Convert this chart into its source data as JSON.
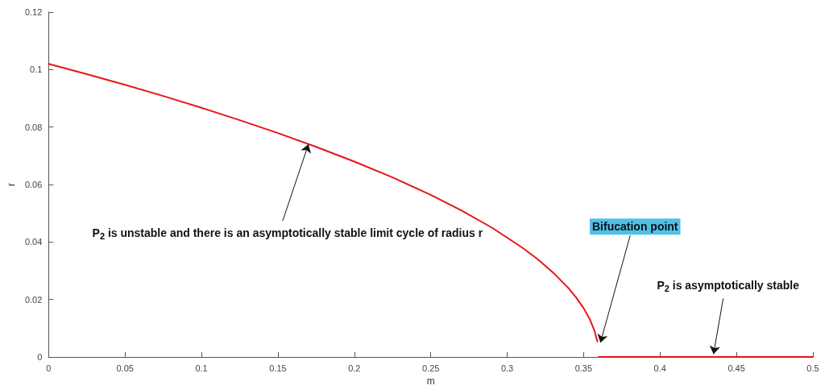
{
  "chart_data": {
    "type": "line",
    "xlabel": "m",
    "ylabel": "r",
    "xlim": [
      0,
      0.5
    ],
    "xticks": [
      0,
      0.05,
      0.1,
      0.15,
      0.2,
      0.25,
      0.3,
      0.35,
      0.4,
      0.45,
      0.5
    ],
    "ylim": [
      0,
      0.12
    ],
    "yticks": [
      0,
      0.02,
      0.04,
      0.06,
      0.08,
      0.1,
      0.12
    ],
    "grid": false,
    "marker": "none",
    "line_style": "solid",
    "series": [
      {
        "color": "#e8141a",
        "x": [
          0,
          0.025,
          0.05,
          0.075,
          0.1,
          0.125,
          0.15,
          0.175,
          0.2,
          0.225,
          0.25,
          0.27,
          0.29,
          0.31,
          0.32,
          0.33,
          0.34,
          0.345,
          0.35,
          0.354,
          0.357,
          0.359
        ],
        "values": [
          0.102,
          0.0984,
          0.0947,
          0.0908,
          0.0867,
          0.0824,
          0.0779,
          0.0731,
          0.068,
          0.0625,
          0.0564,
          0.051,
          0.045,
          0.038,
          0.034,
          0.0294,
          0.024,
          0.0208,
          0.017,
          0.0132,
          0.0093,
          0.0054
        ]
      },
      {
        "color": "#e8141a",
        "x": [
          0.36,
          0.5
        ],
        "values": [
          0,
          0
        ]
      }
    ],
    "annotations": [
      {
        "text": "P$_{2}$ is unstable and there is an asymptotically stable limit cycle of radius r",
        "x": 0.17,
        "y": 0.074
      },
      {
        "text": "Bifucation point",
        "x": 0.361,
        "y": 0.005
      },
      {
        "text": "P$_{2}$ is asymptotically stable",
        "x": 0.435,
        "y": 0.001
      }
    ]
  }
}
